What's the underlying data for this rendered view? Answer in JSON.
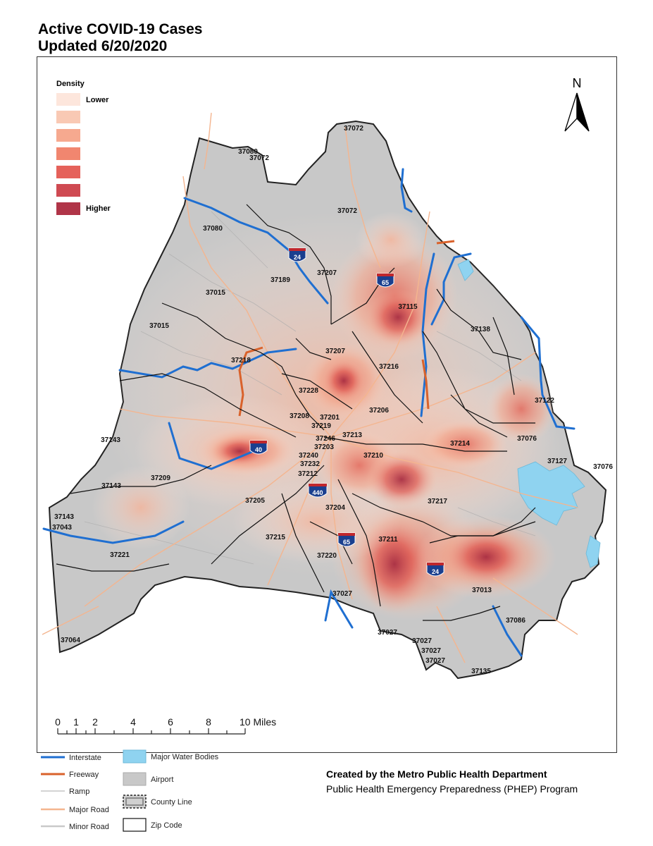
{
  "title_line1": "Active COVID-19 Cases",
  "title_line2": "Updated 6/20/2020",
  "density_legend": {
    "title": "Density",
    "low_label": "Lower",
    "high_label": "Higher",
    "colors": [
      "#fde6dc",
      "#f9c9b4",
      "#f6a98f",
      "#f1866f",
      "#e5615a",
      "#cf4a52",
      "#b03548"
    ]
  },
  "north_label": "N",
  "scale_bar": {
    "ticks": [
      "0",
      "1",
      "2",
      "4",
      "6",
      "8",
      "10 Miles"
    ]
  },
  "interstate_shields": [
    "24",
    "65",
    "40",
    "440",
    "65",
    "24"
  ],
  "zip_labels": [
    "37072",
    "37080",
    "37072",
    "37072",
    "37080",
    "37189",
    "37207",
    "37015",
    "37015",
    "37115",
    "37138",
    "37207",
    "37218",
    "37216",
    "37228",
    "37206",
    "37208",
    "37201",
    "37219",
    "37213",
    "37122",
    "37076",
    "37143",
    "37246",
    "37203",
    "37240",
    "37210",
    "37214",
    "37232",
    "37212",
    "37127",
    "37076",
    "37143",
    "37209",
    "37205",
    "37217",
    "37204",
    "37143",
    "37043",
    "37215",
    "37211",
    "37221",
    "37220",
    "37013",
    "37027",
    "37086",
    "37064",
    "37027",
    "37027",
    "37027",
    "37027",
    "37135"
  ],
  "legend": {
    "interstate": "Interstate",
    "freeway": "Freeway",
    "ramp": "Ramp",
    "major_road": "Major Road",
    "minor_road": "Minor Road",
    "water": "Major Water Bodies",
    "airport": "Airport",
    "county_line": "County Line",
    "zip_code": "Zip Code"
  },
  "credit_line1": "Created by the Metro Public Health Department",
  "credit_line2": "Public Health Emergency Preparedness (PHEP) Program",
  "colors": {
    "county_fill": "#c8c8c8",
    "interstate": "#1f6fd1",
    "freeway": "#d9622b",
    "major_road": "#f4b58f",
    "minor_road": "#c9c9c9",
    "water": "#8fd3f0",
    "hotspot": "#b03548"
  }
}
